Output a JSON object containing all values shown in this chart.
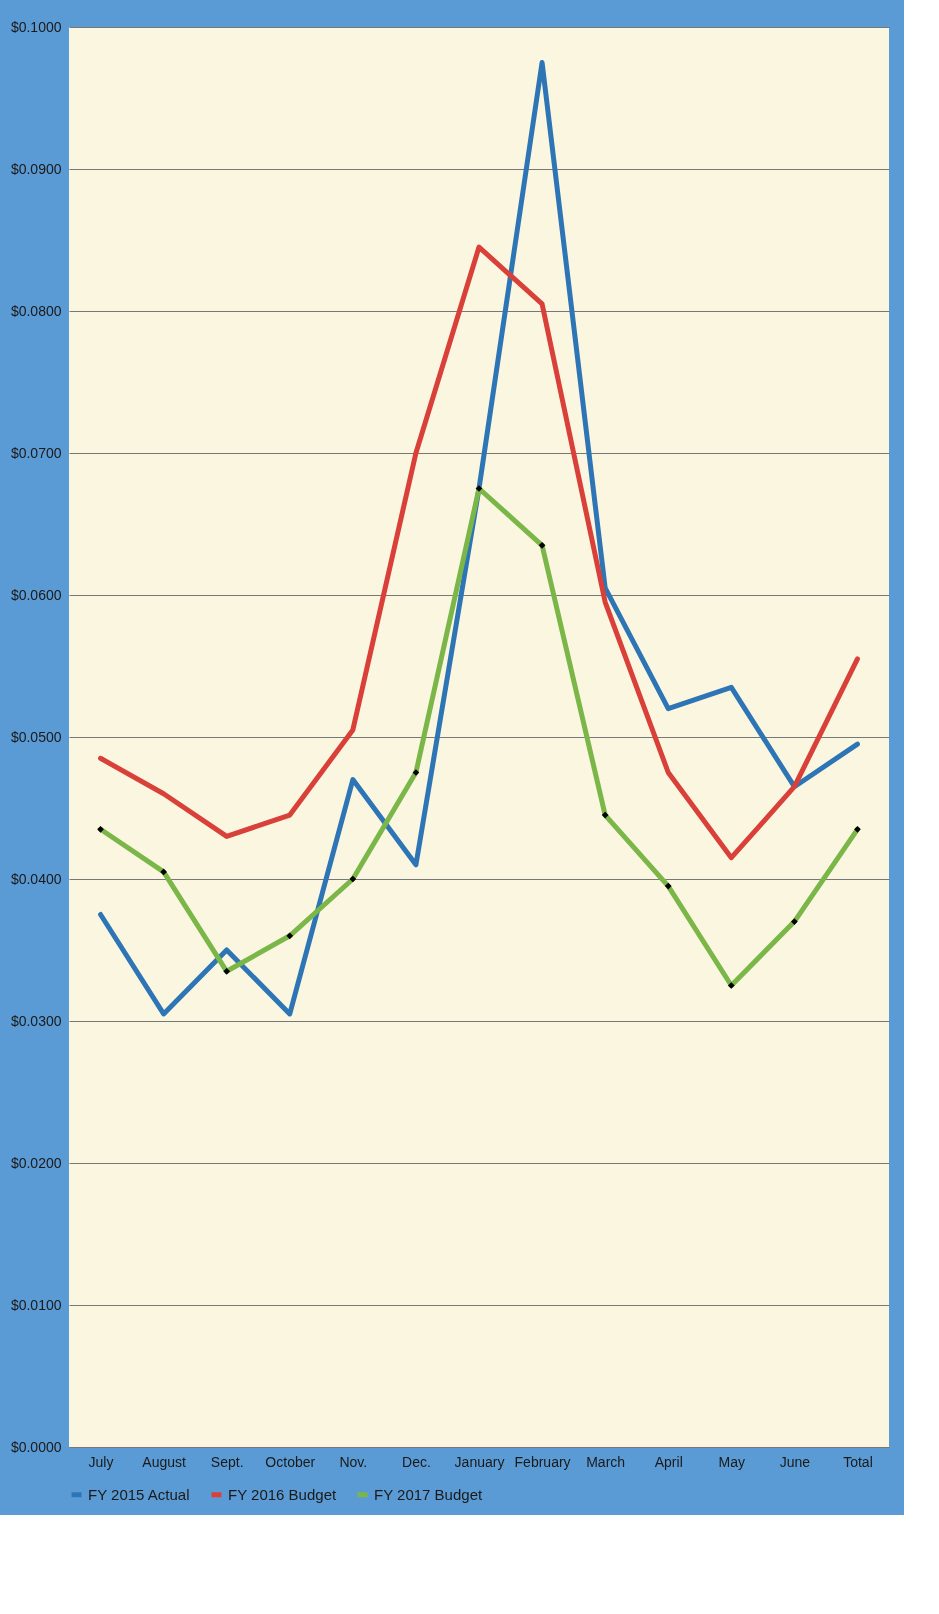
{
  "chart_data": {
    "type": "line",
    "categories": [
      "July",
      "August",
      "Sept.",
      "October",
      "Nov.",
      "Dec.",
      "January",
      "February",
      "March",
      "April",
      "May",
      "June",
      "Total"
    ],
    "series": [
      {
        "name": "FY 2015 Actual",
        "color": "#2e75b6",
        "marker": "none",
        "values": [
          0.0375,
          0.0305,
          0.035,
          0.0305,
          0.047,
          0.041,
          0.0675,
          0.0975,
          0.0605,
          0.052,
          0.0535,
          0.0465,
          0.0495
        ]
      },
      {
        "name": "FY 2016 Budget",
        "color": "#d9403a",
        "marker": "none",
        "values": [
          0.0485,
          0.046,
          0.043,
          0.0445,
          0.0505,
          0.07,
          0.0845,
          0.0805,
          0.0595,
          0.0475,
          0.0415,
          0.0465,
          0.0555
        ]
      },
      {
        "name": "FY 2017 Budget",
        "color": "#7ab648",
        "marker": "diamond",
        "values": [
          0.0435,
          0.0405,
          0.0335,
          0.036,
          0.04,
          0.0475,
          0.0675,
          0.0635,
          0.0445,
          0.0395,
          0.0325,
          0.037,
          0.0435
        ]
      }
    ],
    "ylim": [
      0,
      0.1
    ],
    "yticks": [
      {
        "value": 0,
        "label": "$0.0000"
      },
      {
        "value": 0.01,
        "label": "$0.0100"
      },
      {
        "value": 0.02,
        "label": "$0.0200"
      },
      {
        "value": 0.03,
        "label": "$0.0300"
      },
      {
        "value": 0.04,
        "label": "$0.0400"
      },
      {
        "value": 0.05,
        "label": "$0.0500"
      },
      {
        "value": 0.06,
        "label": "$0.0600"
      },
      {
        "value": 0.07,
        "label": "$0.0700"
      },
      {
        "value": 0.08,
        "label": "$0.0800"
      },
      {
        "value": 0.09,
        "label": "$0.0900"
      },
      {
        "value": 0.1,
        "label": "$0.1000"
      }
    ],
    "grid": "y",
    "legend": "bottom",
    "line_style": "solid"
  }
}
